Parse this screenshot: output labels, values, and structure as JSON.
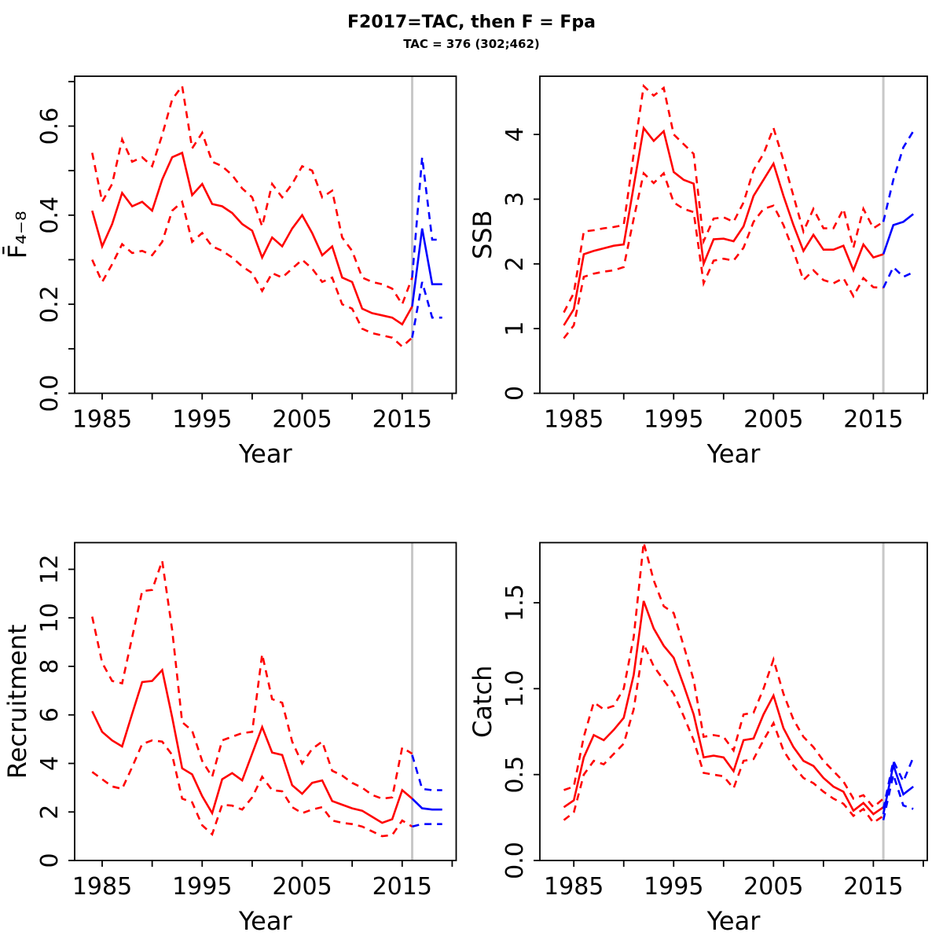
{
  "header": {
    "title": "F2017=TAC, then F = Fpa",
    "subtitle": "TAC = 376 (302;462)"
  },
  "colors": {
    "historical": "#FF0000",
    "projection": "#0000FF",
    "divider": "#C8C8C8",
    "axis": "#000000"
  },
  "divider_year": 2016,
  "years": {
    "historical": [
      1984,
      1985,
      1986,
      1987,
      1988,
      1989,
      1990,
      1991,
      1992,
      1993,
      1994,
      1995,
      1996,
      1997,
      1998,
      1999,
      2000,
      2001,
      2002,
      2003,
      2004,
      2005,
      2006,
      2007,
      2008,
      2009,
      2010,
      2011,
      2012,
      2013,
      2014,
      2015,
      2016
    ],
    "projection": [
      2016,
      2017,
      2018,
      2019
    ]
  },
  "chart_data": [
    {
      "type": "line",
      "panel": "top-left",
      "ylabel": "F̄₄₋₈",
      "xlabel": "Year",
      "xlim": [
        1982.25,
        2020.4
      ],
      "ylim": [
        0,
        0.712
      ],
      "grid": false,
      "legend": "none",
      "xticks": {
        "labeled": [
          1985,
          1995,
          2005,
          2015
        ],
        "minor": [
          1990,
          2000,
          2010,
          2020
        ]
      },
      "yticks": {
        "values": [
          0,
          0.2,
          0.4,
          0.6
        ],
        "labels": [
          "0.0",
          "0.2",
          "0.4",
          "0.6"
        ],
        "minor": [
          0.1,
          0.3,
          0.5,
          0.7
        ]
      },
      "series": [
        {
          "name": "f-median-historical",
          "role": "median",
          "phase": "historical",
          "x_ref": "historical",
          "dash": false,
          "values": [
            0.41,
            0.33,
            0.38,
            0.45,
            0.42,
            0.43,
            0.41,
            0.48,
            0.53,
            0.54,
            0.445,
            0.47,
            0.425,
            0.42,
            0.405,
            0.38,
            0.365,
            0.305,
            0.35,
            0.33,
            0.37,
            0.4,
            0.36,
            0.31,
            0.33,
            0.26,
            0.25,
            0.19,
            0.18,
            0.175,
            0.17,
            0.155,
            0.195
          ]
        },
        {
          "name": "f-ci-upper-historical",
          "role": "ci-upper",
          "phase": "historical",
          "x_ref": "historical",
          "dash": true,
          "values": [
            0.54,
            0.43,
            0.47,
            0.57,
            0.52,
            0.53,
            0.51,
            0.58,
            0.66,
            0.69,
            0.55,
            0.585,
            0.52,
            0.51,
            0.49,
            0.46,
            0.44,
            0.375,
            0.47,
            0.44,
            0.47,
            0.51,
            0.5,
            0.44,
            0.455,
            0.35,
            0.32,
            0.26,
            0.25,
            0.245,
            0.235,
            0.2,
            0.26
          ]
        },
        {
          "name": "f-ci-lower-historical",
          "role": "ci-lower",
          "phase": "historical",
          "x_ref": "historical",
          "dash": true,
          "values": [
            0.3,
            0.25,
            0.29,
            0.335,
            0.315,
            0.32,
            0.31,
            0.34,
            0.41,
            0.43,
            0.34,
            0.36,
            0.33,
            0.32,
            0.305,
            0.285,
            0.27,
            0.23,
            0.27,
            0.26,
            0.28,
            0.3,
            0.28,
            0.25,
            0.26,
            0.2,
            0.19,
            0.145,
            0.135,
            0.13,
            0.125,
            0.105,
            0.125
          ]
        },
        {
          "name": "f-median-projection",
          "role": "median",
          "phase": "projection",
          "x_ref": "projection",
          "dash": false,
          "values": [
            0.195,
            0.37,
            0.245,
            0.245
          ]
        },
        {
          "name": "f-ci-upper-projection",
          "role": "ci-upper",
          "phase": "projection",
          "x_ref": "projection",
          "dash": true,
          "values": [
            0.26,
            0.53,
            0.345,
            0.345
          ]
        },
        {
          "name": "f-ci-lower-projection",
          "role": "ci-lower",
          "phase": "projection",
          "x_ref": "projection",
          "dash": true,
          "values": [
            0.125,
            0.25,
            0.17,
            0.17
          ]
        }
      ]
    },
    {
      "type": "line",
      "panel": "top-right",
      "ylabel": "SSB",
      "xlabel": "Year",
      "xlim": [
        1981.6,
        2020.4
      ],
      "ylim": [
        0,
        4.9
      ],
      "grid": false,
      "legend": "none",
      "xticks": {
        "labeled": [
          1985,
          1995,
          2005,
          2015
        ],
        "minor": [
          1990,
          2000,
          2010,
          2020
        ]
      },
      "yticks": {
        "values": [
          0,
          1,
          2,
          3,
          4
        ],
        "labels": [
          "0",
          "1",
          "2",
          "3",
          "4"
        ],
        "minor": []
      },
      "series": [
        {
          "name": "ssb-median-historical",
          "role": "median",
          "phase": "historical",
          "x_ref": "historical",
          "dash": false,
          "values": [
            1.05,
            1.3,
            2.15,
            2.2,
            2.24,
            2.28,
            2.3,
            3.2,
            4.1,
            3.9,
            4.05,
            3.42,
            3.3,
            3.24,
            2.0,
            2.38,
            2.39,
            2.35,
            2.58,
            3.05,
            3.3,
            3.55,
            3.05,
            2.6,
            2.2,
            2.45,
            2.22,
            2.22,
            2.28,
            1.9,
            2.3,
            2.1,
            2.15
          ]
        },
        {
          "name": "ssb-ci-upper-historical",
          "role": "ci-upper",
          "phase": "historical",
          "x_ref": "historical",
          "dash": true,
          "values": [
            1.25,
            1.55,
            2.5,
            2.52,
            2.55,
            2.57,
            2.6,
            3.7,
            4.75,
            4.6,
            4.72,
            4.0,
            3.85,
            3.7,
            2.35,
            2.7,
            2.72,
            2.65,
            2.95,
            3.45,
            3.7,
            4.1,
            3.6,
            3.05,
            2.5,
            2.85,
            2.55,
            2.55,
            2.85,
            2.25,
            2.85,
            2.55,
            2.65
          ]
        },
        {
          "name": "ssb-ci-lower-historical",
          "role": "ci-lower",
          "phase": "historical",
          "x_ref": "historical",
          "dash": true,
          "values": [
            0.85,
            1.05,
            1.8,
            1.85,
            1.88,
            1.9,
            1.95,
            2.7,
            3.4,
            3.25,
            3.4,
            2.95,
            2.85,
            2.8,
            1.7,
            2.05,
            2.08,
            2.05,
            2.25,
            2.65,
            2.85,
            2.9,
            2.6,
            2.2,
            1.75,
            1.9,
            1.75,
            1.7,
            1.78,
            1.5,
            1.78,
            1.64,
            1.63
          ]
        },
        {
          "name": "ssb-median-projection",
          "role": "median",
          "phase": "projection",
          "x_ref": "projection",
          "dash": false,
          "values": [
            2.15,
            2.6,
            2.65,
            2.77
          ]
        },
        {
          "name": "ssb-ci-upper-projection",
          "role": "ci-upper",
          "phase": "projection",
          "x_ref": "projection",
          "dash": true,
          "values": [
            2.65,
            3.3,
            3.8,
            4.05
          ]
        },
        {
          "name": "ssb-ci-lower-projection",
          "role": "ci-lower",
          "phase": "projection",
          "x_ref": "projection",
          "dash": true,
          "values": [
            1.63,
            1.95,
            1.8,
            1.87
          ]
        }
      ]
    },
    {
      "type": "line",
      "panel": "bottom-left",
      "ylabel": "Recruitment",
      "xlabel": "Year",
      "xlim": [
        1982.25,
        2020.4
      ],
      "ylim": [
        0,
        13.1
      ],
      "grid": false,
      "legend": "none",
      "xticks": {
        "labeled": [
          1985,
          1995,
          2005,
          2015
        ],
        "minor": [
          1990,
          2000,
          2010,
          2020
        ]
      },
      "yticks": {
        "values": [
          0,
          2,
          4,
          6,
          8,
          10,
          12
        ],
        "labels": [
          "0",
          "2",
          "4",
          "6",
          "8",
          "10",
          "12"
        ],
        "minor": []
      },
      "series": [
        {
          "name": "rec-median-historical",
          "role": "median",
          "phase": "historical",
          "x_ref": "historical",
          "dash": false,
          "values": [
            6.15,
            5.3,
            4.95,
            4.7,
            6.05,
            7.35,
            7.4,
            7.85,
            5.9,
            3.8,
            3.55,
            2.65,
            1.95,
            3.35,
            3.6,
            3.3,
            4.4,
            5.5,
            4.45,
            4.35,
            3.1,
            2.75,
            3.2,
            3.3,
            2.45,
            2.3,
            2.15,
            2.05,
            1.8,
            1.55,
            1.7,
            2.9,
            2.55
          ]
        },
        {
          "name": "rec-ci-upper-historical",
          "role": "ci-upper",
          "phase": "historical",
          "x_ref": "historical",
          "dash": true,
          "values": [
            10.05,
            8.15,
            7.4,
            7.3,
            9.2,
            11.1,
            11.15,
            12.35,
            9.5,
            5.7,
            5.35,
            4.1,
            3.45,
            4.95,
            5.1,
            5.25,
            5.3,
            8.5,
            6.65,
            6.5,
            4.9,
            4.0,
            4.6,
            4.9,
            3.7,
            3.5,
            3.2,
            3.0,
            2.7,
            2.55,
            2.6,
            4.65,
            4.4
          ]
        },
        {
          "name": "rec-ci-lower-historical",
          "role": "ci-lower",
          "phase": "historical",
          "x_ref": "historical",
          "dash": true,
          "values": [
            3.65,
            3.35,
            3.05,
            2.95,
            3.85,
            4.8,
            4.95,
            4.9,
            4.35,
            2.55,
            2.4,
            1.45,
            1.08,
            2.3,
            2.26,
            2.1,
            2.6,
            3.45,
            2.9,
            2.85,
            2.2,
            1.95,
            2.1,
            2.2,
            1.65,
            1.55,
            1.5,
            1.4,
            1.2,
            1.0,
            1.05,
            1.65,
            1.4
          ]
        },
        {
          "name": "rec-median-projection",
          "role": "median",
          "phase": "projection",
          "x_ref": "projection",
          "dash": false,
          "values": [
            2.55,
            2.15,
            2.1,
            2.1
          ]
        },
        {
          "name": "rec-ci-upper-projection",
          "role": "ci-upper",
          "phase": "projection",
          "x_ref": "projection",
          "dash": true,
          "values": [
            4.35,
            2.95,
            2.9,
            2.9
          ]
        },
        {
          "name": "rec-ci-lower-projection",
          "role": "ci-lower",
          "phase": "projection",
          "x_ref": "projection",
          "dash": true,
          "values": [
            1.4,
            1.5,
            1.5,
            1.5
          ]
        }
      ]
    },
    {
      "type": "line",
      "panel": "bottom-right",
      "ylabel": "Catch",
      "xlabel": "Year",
      "xlim": [
        1981.6,
        2020.4
      ],
      "ylim": [
        0,
        1.85
      ],
      "grid": false,
      "legend": "none",
      "xticks": {
        "labeled": [
          1985,
          1995,
          2005,
          2015
        ],
        "minor": [
          1990,
          2000,
          2010,
          2020
        ]
      },
      "yticks": {
        "values": [
          0,
          0.5,
          1.0,
          1.5
        ],
        "labels": [
          "0.0",
          "0.5",
          "1.0",
          "1.5"
        ],
        "minor": []
      },
      "series": [
        {
          "name": "catch-median-historical",
          "role": "median",
          "phase": "historical",
          "x_ref": "historical",
          "dash": false,
          "values": [
            0.31,
            0.35,
            0.6,
            0.73,
            0.7,
            0.76,
            0.83,
            1.08,
            1.51,
            1.35,
            1.25,
            1.18,
            1.02,
            0.85,
            0.6,
            0.61,
            0.6,
            0.52,
            0.7,
            0.71,
            0.85,
            0.96,
            0.77,
            0.66,
            0.58,
            0.55,
            0.48,
            0.43,
            0.4,
            0.29,
            0.335,
            0.27,
            0.31
          ]
        },
        {
          "name": "catch-ci-upper-historical",
          "role": "ci-upper",
          "phase": "historical",
          "x_ref": "historical",
          "dash": true,
          "values": [
            0.41,
            0.43,
            0.72,
            0.92,
            0.88,
            0.9,
            1.0,
            1.3,
            1.85,
            1.63,
            1.48,
            1.44,
            1.25,
            1.05,
            0.72,
            0.73,
            0.72,
            0.64,
            0.85,
            0.86,
            1.0,
            1.17,
            0.97,
            0.82,
            0.72,
            0.66,
            0.58,
            0.52,
            0.46,
            0.36,
            0.38,
            0.31,
            0.36
          ]
        },
        {
          "name": "catch-ci-lower-historical",
          "role": "ci-lower",
          "phase": "historical",
          "x_ref": "historical",
          "dash": true,
          "values": [
            0.235,
            0.28,
            0.5,
            0.58,
            0.56,
            0.62,
            0.68,
            0.88,
            1.26,
            1.13,
            1.05,
            0.97,
            0.84,
            0.7,
            0.51,
            0.5,
            0.49,
            0.42,
            0.58,
            0.59,
            0.7,
            0.8,
            0.64,
            0.55,
            0.48,
            0.45,
            0.4,
            0.36,
            0.33,
            0.26,
            0.3,
            0.22,
            0.26
          ]
        },
        {
          "name": "catch-median-projection",
          "role": "median",
          "phase": "projection",
          "x_ref": "projection",
          "dash": false,
          "values": [
            0.27,
            0.555,
            0.385,
            0.43
          ]
        },
        {
          "name": "catch-ci-upper-projection",
          "role": "ci-upper",
          "phase": "projection",
          "x_ref": "projection",
          "dash": true,
          "values": [
            0.3,
            0.58,
            0.46,
            0.6
          ]
        },
        {
          "name": "catch-ci-lower-projection",
          "role": "ci-lower",
          "phase": "projection",
          "x_ref": "projection",
          "dash": true,
          "values": [
            0.235,
            0.5,
            0.32,
            0.3
          ]
        }
      ]
    }
  ]
}
